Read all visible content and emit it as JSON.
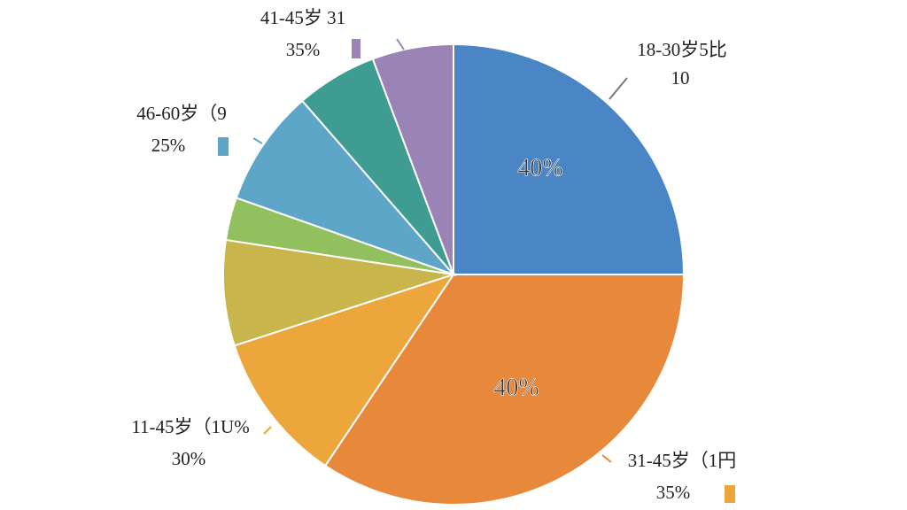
{
  "chart_data": {
    "type": "pie",
    "values": [
      25,
      34.4,
      10.6,
      7.4,
      3,
      8.2,
      5.7,
      5.7
    ],
    "colors": [
      "#4a86c5",
      "#e8883a",
      "#eda63c",
      "#c8b64c",
      "#92c05e",
      "#5ea6c8",
      "#3e9c93",
      "#9a84b6"
    ],
    "annotations": [
      {
        "lines": [
          "41-45岁 31",
          "35%"
        ]
      },
      {
        "lines": [
          "18-30岁5比",
          "10"
        ]
      },
      {
        "lines": [
          "46-60岁（9",
          "25%"
        ]
      },
      {
        "lines": [
          "11-45岁（1U%",
          "30%"
        ]
      },
      {
        "lines": [
          "31-45岁（1円",
          "35%"
        ]
      },
      {
        "lines": [
          "40%"
        ]
      },
      {
        "lines": [
          "40%"
        ]
      }
    ]
  }
}
